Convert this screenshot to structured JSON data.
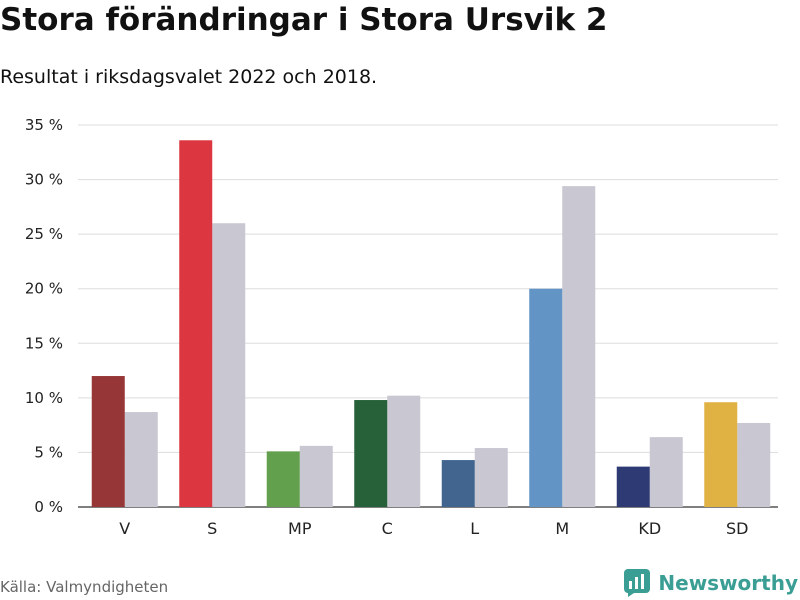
{
  "header": {
    "title": "Stora förändringar i Stora Ursvik 2",
    "subtitle": "Resultat i riksdagsvalet 2022 och 2018."
  },
  "footer": {
    "source": "Källa: Valmyndigheten",
    "brand": "Newsworthy",
    "brand_icon": "bar-chart-logo-icon"
  },
  "chart_data": {
    "type": "bar",
    "categories": [
      "V",
      "S",
      "MP",
      "C",
      "L",
      "M",
      "KD",
      "SD"
    ],
    "series": [
      {
        "values": [
          12.0,
          33.6,
          5.1,
          9.8,
          4.3,
          20.0,
          3.7,
          9.6
        ],
        "colors": [
          "#963636",
          "#dc3740",
          "#62a04e",
          "#26613a",
          "#42658f",
          "#6295c6",
          "#2e3a74",
          "#e0b243"
        ]
      },
      {
        "values": [
          8.7,
          26.0,
          5.6,
          10.2,
          5.4,
          29.4,
          6.4,
          7.7
        ],
        "color": "#c8c7d2"
      }
    ],
    "y_ticks": [
      "0 %",
      "5 %",
      "10 %",
      "15 %",
      "20 %",
      "25 %",
      "30 %",
      "35 %"
    ],
    "ylim": [
      0,
      35
    ],
    "grid": true,
    "legend": "none",
    "gridline_color": "#dddddd"
  }
}
